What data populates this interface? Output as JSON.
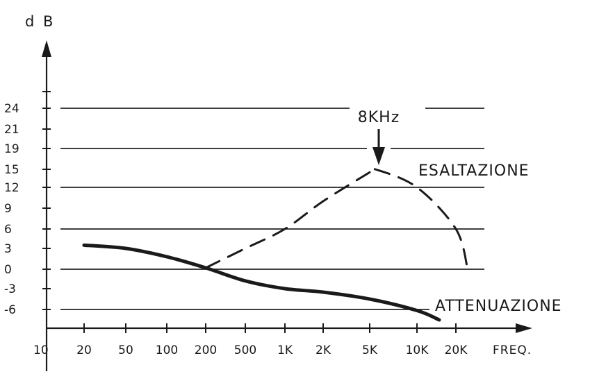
{
  "chart_data": {
    "type": "line",
    "ylabel": "d B",
    "xlabel": "FREQ.",
    "y_ticks": [
      24,
      21,
      19,
      15,
      12,
      9,
      6,
      3,
      0,
      -3,
      -6
    ],
    "y_tick_labels": [
      "24",
      "21",
      "19",
      "15",
      "12",
      "9",
      "6",
      "3",
      "0",
      "-3",
      "-6"
    ],
    "gridlines_y": [
      24,
      19,
      12,
      6,
      0,
      -6
    ],
    "x_categories": [
      "10",
      "20",
      "50",
      "100",
      "200",
      "500",
      "1K",
      "2K",
      "5K",
      "10K",
      "20K"
    ],
    "series": [
      {
        "name": "ESALTAZIONE",
        "style": "dashed",
        "x": [
          "200",
          "500",
          "1K",
          "2K",
          "5K",
          "8K",
          "10K",
          "20K",
          "25K"
        ],
        "y": [
          0.2,
          3,
          6,
          10,
          14.5,
          15,
          12,
          6,
          0
        ]
      },
      {
        "name": "ATTENUAZIONE",
        "style": "solid",
        "x": [
          "20",
          "50",
          "100",
          "200",
          "500",
          "1K",
          "2K",
          "5K",
          "10K",
          "17K"
        ],
        "y": [
          3.5,
          3,
          1.8,
          0.2,
          -1.8,
          -3,
          -3.5,
          -4.5,
          -6.2,
          -8
        ]
      }
    ],
    "annotations": [
      {
        "text": "8KHz",
        "at_x": "8K",
        "arrow": "down"
      }
    ],
    "grid": true
  },
  "colors": {
    "ink": "#1a1a1a",
    "background": "#ffffff"
  }
}
